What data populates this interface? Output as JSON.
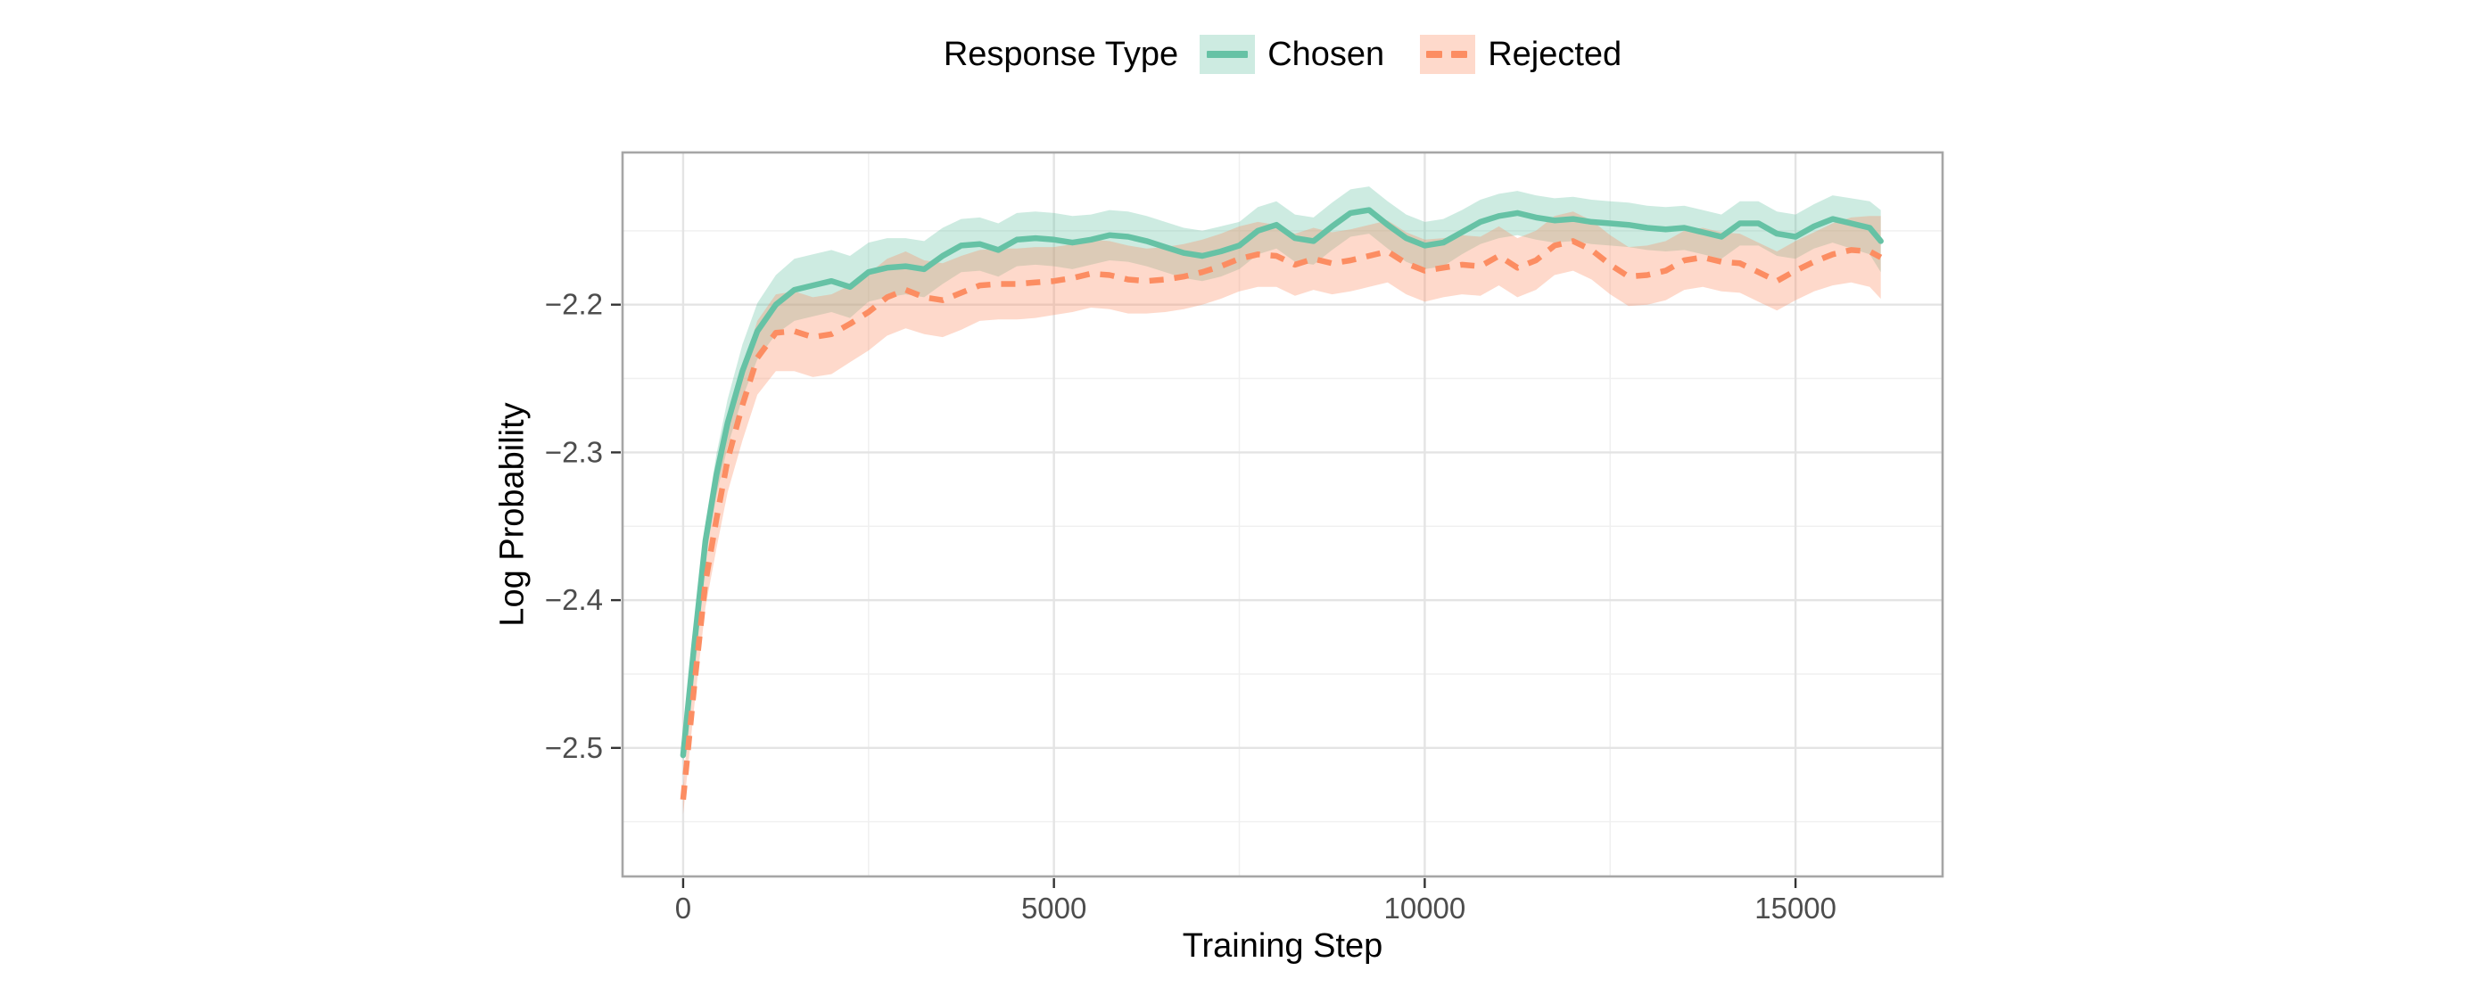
{
  "page": {
    "background": "#FFFFFF"
  },
  "legend": {
    "title": "Response Type",
    "items": [
      {
        "label": "Chosen",
        "line_color": "#66C2A5",
        "fill_color": "rgba(102,194,165,0.33)",
        "dash": "solid"
      },
      {
        "label": "Rejected",
        "line_color": "#FC8D62",
        "fill_color": "rgba(252,141,98,0.33)",
        "dash": "dashed"
      }
    ]
  },
  "colors": {
    "grid_major": "#E4E4E4",
    "grid_minor": "#F0F0F0",
    "panel_border": "#A6A6A6",
    "panel_fill": "#FFFFFF",
    "tick_mark": "#333333",
    "tick_label": "#4D4D4D",
    "text": "#000000"
  },
  "chart_data": {
    "type": "line",
    "title": "",
    "xlabel": "Training Step",
    "ylabel": "Log Probability",
    "legend_title": "Response Type",
    "legend_position": "top",
    "grid": true,
    "xlim": [
      -817,
      16983
    ],
    "ylim": [
      -2.587,
      -2.097
    ],
    "x_ticks": [
      0,
      5000,
      10000,
      15000
    ],
    "x_tick_labels": [
      "0",
      "5000",
      "10000",
      "15000"
    ],
    "x_minor_ticks": [
      2500,
      7500,
      12500
    ],
    "y_ticks": [
      -2.2,
      -2.3,
      -2.4,
      -2.5
    ],
    "y_tick_labels": [
      "−2.2",
      "−2.3",
      "−2.4",
      "−2.5"
    ],
    "y_minor_ticks": [
      -2.15,
      -2.25,
      -2.35,
      -2.45,
      -2.55
    ],
    "x": [
      0,
      150,
      300,
      450,
      600,
      800,
      1000,
      1250,
      1500,
      1750,
      2000,
      2250,
      2500,
      2750,
      3000,
      3250,
      3500,
      3750,
      4000,
      4250,
      4500,
      4750,
      5000,
      5250,
      5500,
      5750,
      6000,
      6250,
      6500,
      6750,
      7000,
      7250,
      7500,
      7750,
      8000,
      8250,
      8500,
      8750,
      9000,
      9250,
      9500,
      9750,
      10000,
      10250,
      10500,
      10750,
      11000,
      11250,
      11500,
      11750,
      12000,
      12250,
      12500,
      12750,
      13000,
      13250,
      13500,
      13750,
      14000,
      14250,
      14500,
      14750,
      15000,
      15250,
      15500,
      15750,
      16000,
      16150
    ],
    "series": [
      {
        "name": "Chosen",
        "color": "#66C2A5",
        "style": "solid",
        "fill": "rgba(102,194,165,0.33)",
        "values": [
          -2.505,
          -2.43,
          -2.36,
          -2.315,
          -2.28,
          -2.245,
          -2.218,
          -2.2,
          -2.19,
          -2.187,
          -2.184,
          -2.188,
          -2.178,
          -2.175,
          -2.174,
          -2.176,
          -2.167,
          -2.16,
          -2.159,
          -2.163,
          -2.156,
          -2.155,
          -2.156,
          -2.158,
          -2.156,
          -2.153,
          -2.154,
          -2.157,
          -2.161,
          -2.165,
          -2.167,
          -2.164,
          -2.16,
          -2.15,
          -2.146,
          -2.155,
          -2.157,
          -2.147,
          -2.138,
          -2.136,
          -2.146,
          -2.155,
          -2.16,
          -2.158,
          -2.151,
          -2.144,
          -2.14,
          -2.138,
          -2.141,
          -2.143,
          -2.142,
          -2.144,
          -2.145,
          -2.146,
          -2.148,
          -2.149,
          -2.148,
          -2.151,
          -2.154,
          -2.145,
          -2.145,
          -2.152,
          -2.154,
          -2.147,
          -2.142,
          -2.145,
          -2.148,
          -2.157
        ],
        "ci_halfwidth": [
          0.006,
          0.009,
          0.012,
          0.014,
          0.016,
          0.018,
          0.019,
          0.02,
          0.021,
          0.021,
          0.021,
          0.021,
          0.02,
          0.02,
          0.019,
          0.019,
          0.019,
          0.018,
          0.018,
          0.018,
          0.018,
          0.018,
          0.018,
          0.018,
          0.017,
          0.017,
          0.017,
          0.017,
          0.017,
          0.017,
          0.017,
          0.017,
          0.016,
          0.016,
          0.016,
          0.016,
          0.016,
          0.016,
          0.016,
          0.016,
          0.016,
          0.016,
          0.016,
          0.016,
          0.015,
          0.015,
          0.015,
          0.015,
          0.015,
          0.015,
          0.015,
          0.015,
          0.015,
          0.015,
          0.015,
          0.015,
          0.015,
          0.015,
          0.015,
          0.015,
          0.015,
          0.015,
          0.015,
          0.015,
          0.016,
          0.017,
          0.018,
          0.021
        ]
      },
      {
        "name": "Rejected",
        "color": "#FC8D62",
        "style": "dashed",
        "fill": "rgba(252,141,98,0.33)",
        "values": [
          -2.535,
          -2.458,
          -2.388,
          -2.345,
          -2.305,
          -2.268,
          -2.236,
          -2.219,
          -2.218,
          -2.222,
          -2.22,
          -2.213,
          -2.205,
          -2.195,
          -2.19,
          -2.195,
          -2.197,
          -2.192,
          -2.187,
          -2.186,
          -2.186,
          -2.185,
          -2.184,
          -2.182,
          -2.179,
          -2.18,
          -2.183,
          -2.184,
          -2.183,
          -2.181,
          -2.178,
          -2.174,
          -2.169,
          -2.166,
          -2.167,
          -2.173,
          -2.169,
          -2.172,
          -2.17,
          -2.167,
          -2.164,
          -2.172,
          -2.177,
          -2.175,
          -2.173,
          -2.174,
          -2.167,
          -2.175,
          -2.17,
          -2.16,
          -2.157,
          -2.163,
          -2.173,
          -2.181,
          -2.18,
          -2.177,
          -2.17,
          -2.168,
          -2.171,
          -2.172,
          -2.178,
          -2.184,
          -2.177,
          -2.171,
          -2.166,
          -2.163,
          -2.164,
          -2.168
        ],
        "ci_halfwidth": [
          0.01,
          0.014,
          0.017,
          0.02,
          0.022,
          0.024,
          0.025,
          0.026,
          0.027,
          0.027,
          0.027,
          0.026,
          0.026,
          0.026,
          0.026,
          0.025,
          0.025,
          0.025,
          0.024,
          0.024,
          0.024,
          0.024,
          0.023,
          0.023,
          0.023,
          0.023,
          0.023,
          0.022,
          0.022,
          0.022,
          0.022,
          0.022,
          0.022,
          0.022,
          0.021,
          0.021,
          0.021,
          0.021,
          0.021,
          0.021,
          0.021,
          0.021,
          0.021,
          0.02,
          0.02,
          0.02,
          0.02,
          0.02,
          0.02,
          0.02,
          0.02,
          0.02,
          0.02,
          0.02,
          0.02,
          0.02,
          0.02,
          0.02,
          0.02,
          0.02,
          0.02,
          0.02,
          0.02,
          0.02,
          0.021,
          0.022,
          0.024,
          0.028
        ]
      }
    ]
  }
}
